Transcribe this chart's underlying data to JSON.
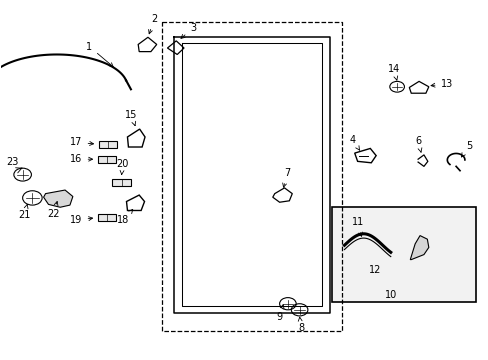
{
  "bg_color": "#ffffff",
  "fig_width": 4.89,
  "fig_height": 3.6,
  "dpi": 100,
  "label_fontsize": 7.0,
  "label_color": "#000000",
  "line_color": "#000000"
}
